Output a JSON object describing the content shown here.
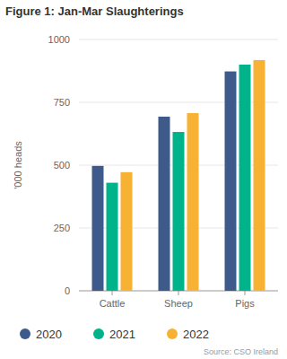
{
  "chart_data": {
    "type": "bar",
    "title": "Figure 1: Jan-Mar Slaughterings",
    "y_label": "'000 heads",
    "source": "Source: CSO Ireland",
    "categories": [
      "Cattle",
      "Sheep",
      "Pigs"
    ],
    "series": [
      {
        "name": "2020",
        "color": "#3e5a8a",
        "values": [
          497,
          693,
          873
        ]
      },
      {
        "name": "2021",
        "color": "#00b38a",
        "values": [
          430,
          632,
          900
        ]
      },
      {
        "name": "2022",
        "color": "#f7b234",
        "values": [
          472,
          707,
          918
        ]
      }
    ],
    "ylim": [
      0,
      1000
    ],
    "yticks": [
      0,
      250,
      500,
      750,
      1000
    ],
    "grid": true,
    "legend": "bottom"
  }
}
